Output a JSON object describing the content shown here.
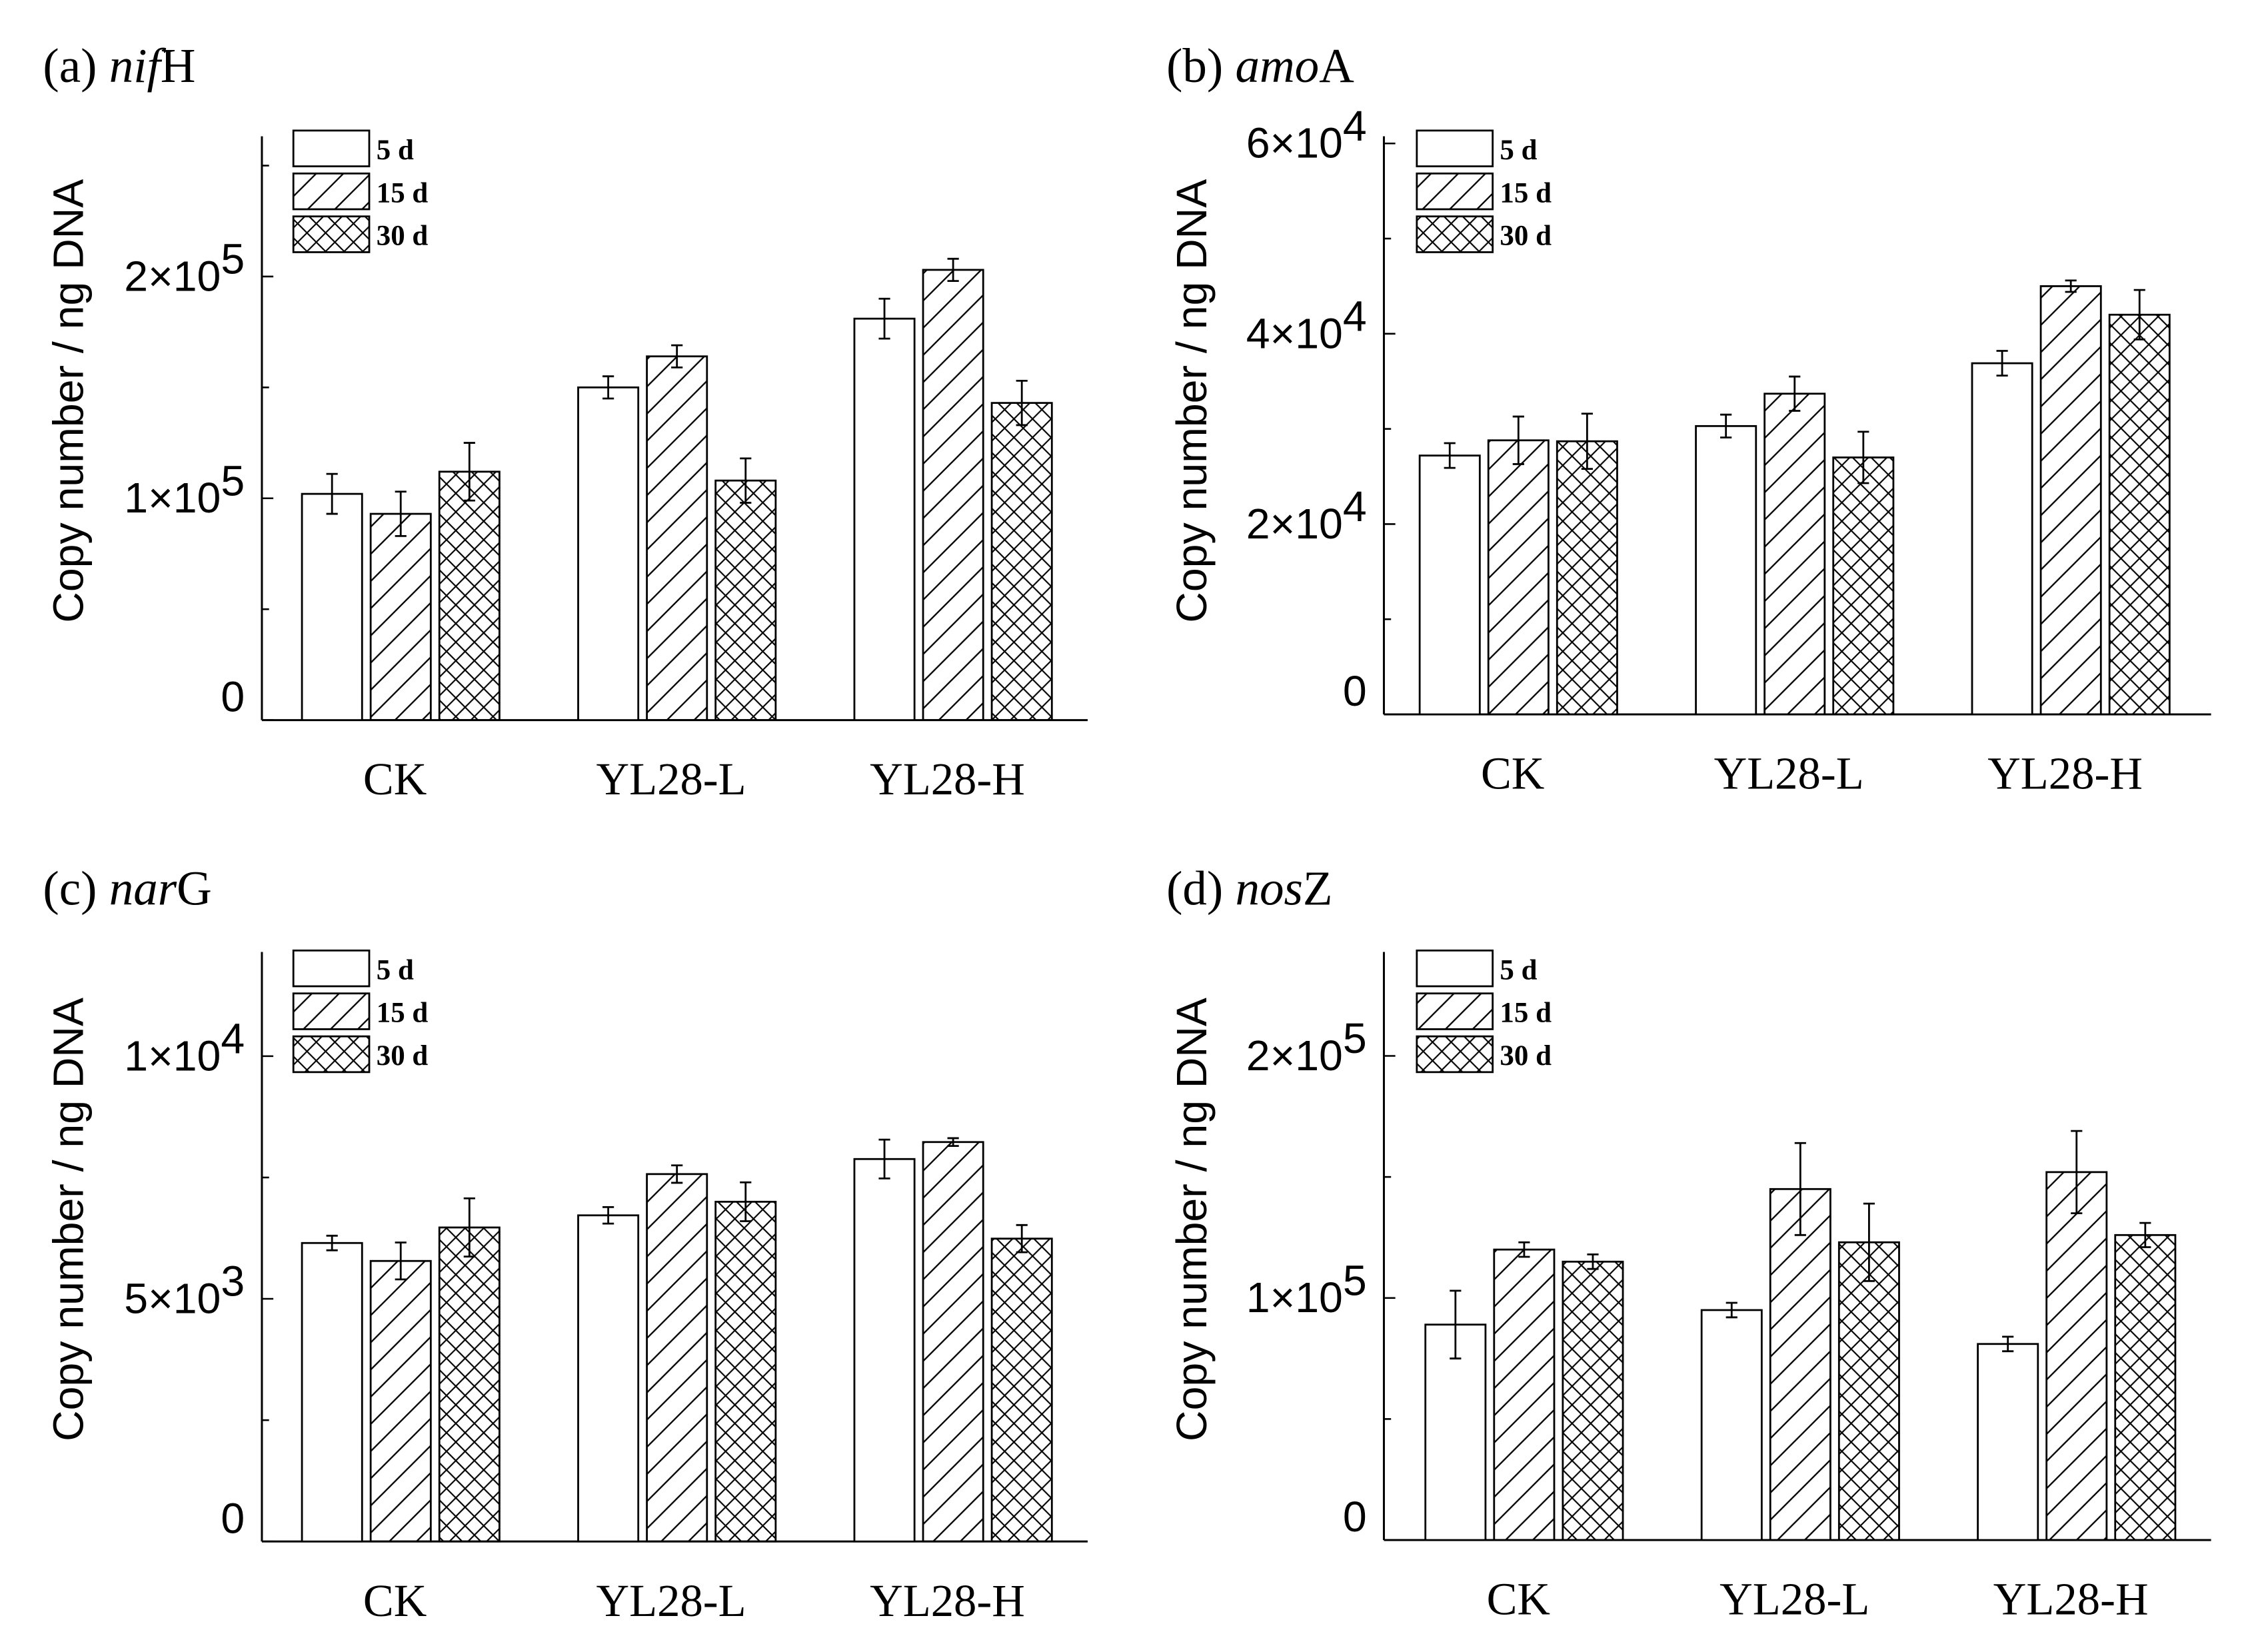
{
  "legend_entries": [
    "5 d",
    "15 d",
    "30 d"
  ],
  "y_axis_label": "Copy number / ng DNA",
  "chart_data": [
    {
      "type": "bar",
      "title_prefix": "(a) ",
      "title_gene": "nif",
      "title_suffix": "H",
      "ylabel": "Copy number / ng DNA",
      "categories": [
        "CK",
        "YL28-L",
        "YL28-H"
      ],
      "ylim": [
        0,
        260000
      ],
      "yticks": [
        {
          "value": 0,
          "base": "0",
          "sup": ""
        },
        {
          "value": 100000,
          "base": "1×10",
          "sup": "5"
        },
        {
          "value": 200000,
          "base": "2×10",
          "sup": "5"
        }
      ],
      "legend": "top-left",
      "series": [
        {
          "name": "5 d",
          "pattern": "none",
          "values": [
            102000,
            150000,
            181000
          ],
          "errors": [
            9000,
            5000,
            9000
          ]
        },
        {
          "name": "15 d",
          "pattern": "diagonal",
          "values": [
            93000,
            164000,
            203000
          ],
          "errors": [
            10000,
            5000,
            5000
          ]
        },
        {
          "name": "30 d",
          "pattern": "crosshatch",
          "values": [
            112000,
            108000,
            143000
          ],
          "errors": [
            13000,
            10000,
            10000
          ]
        }
      ]
    },
    {
      "type": "bar",
      "title_prefix": "(b) ",
      "title_gene": "amo",
      "title_suffix": "A",
      "ylabel": "Copy number / ng DNA",
      "categories": [
        "CK",
        "YL28-L",
        "YL28-H"
      ],
      "ylim": [
        0,
        60000
      ],
      "yticks": [
        {
          "value": 0,
          "base": "0",
          "sup": ""
        },
        {
          "value": 20000,
          "base": "2×10",
          "sup": "4"
        },
        {
          "value": 40000,
          "base": "4×10",
          "sup": "4"
        },
        {
          "value": 60000,
          "base": "6×10",
          "sup": "4"
        }
      ],
      "legend": "top-left",
      "series": [
        {
          "name": "5 d",
          "pattern": "none",
          "values": [
            27200,
            30300,
            36900
          ],
          "errors": [
            1300,
            1200,
            1300
          ]
        },
        {
          "name": "15 d",
          "pattern": "diagonal",
          "values": [
            28800,
            33700,
            45000
          ],
          "errors": [
            2500,
            1800,
            600
          ]
        },
        {
          "name": "30 d",
          "pattern": "crosshatch",
          "values": [
            28700,
            27000,
            42000
          ],
          "errors": [
            2900,
            2700,
            2600
          ]
        }
      ]
    },
    {
      "type": "bar",
      "title_prefix": "(c) ",
      "title_gene": "nar",
      "title_suffix": "G",
      "ylabel": "Copy number / ng DNA",
      "categories": [
        "CK",
        "YL28-L",
        "YL28-H"
      ],
      "ylim": [
        0,
        12000
      ],
      "yticks": [
        {
          "value": 0,
          "base": "0",
          "sup": ""
        },
        {
          "value": 5000,
          "base": "5×10",
          "sup": "3"
        },
        {
          "value": 10000,
          "base": "1×10",
          "sup": "4"
        }
      ],
      "legend": "top-left",
      "series": [
        {
          "name": "5 d",
          "pattern": "none",
          "values": [
            6150,
            6720,
            7880
          ],
          "errors": [
            150,
            170,
            400
          ]
        },
        {
          "name": "15 d",
          "pattern": "diagonal",
          "values": [
            5780,
            7570,
            8230
          ],
          "errors": [
            380,
            180,
            80
          ]
        },
        {
          "name": "30 d",
          "pattern": "crosshatch",
          "values": [
            6470,
            7000,
            6240
          ],
          "errors": [
            600,
            400,
            280
          ]
        }
      ]
    },
    {
      "type": "bar",
      "title_prefix": "(d) ",
      "title_gene": "nos",
      "title_suffix": "Z",
      "ylabel": "Copy number / ng DNA",
      "categories": [
        "CK",
        "YL28-L",
        "YL28-H"
      ],
      "ylim": [
        0,
        240000
      ],
      "yticks": [
        {
          "value": 0,
          "base": "0",
          "sup": ""
        },
        {
          "value": 100000,
          "base": "1×10",
          "sup": "5"
        },
        {
          "value": 200000,
          "base": "2×10",
          "sup": "5"
        }
      ],
      "legend": "top-left",
      "series": [
        {
          "name": "5 d",
          "pattern": "none",
          "values": [
            89000,
            95000,
            81000
          ],
          "errors": [
            14000,
            3000,
            3000
          ]
        },
        {
          "name": "15 d",
          "pattern": "diagonal",
          "values": [
            120000,
            145000,
            152000
          ],
          "errors": [
            3000,
            19000,
            17000
          ]
        },
        {
          "name": "30 d",
          "pattern": "crosshatch",
          "values": [
            115000,
            123000,
            126000
          ],
          "errors": [
            3000,
            16000,
            5000
          ]
        }
      ]
    }
  ]
}
